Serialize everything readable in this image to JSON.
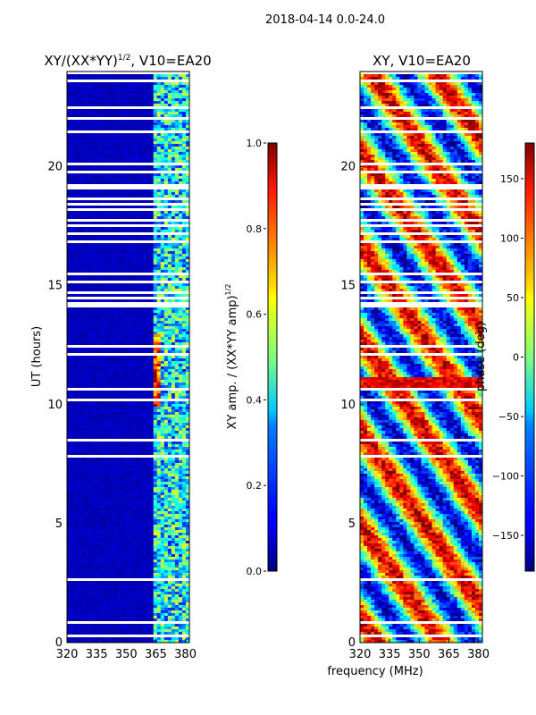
{
  "figure": {
    "suptitle": "2018-04-14 0.0-24.0",
    "xlabel": "frequency (MHz)"
  },
  "chart_data": [
    {
      "type": "heatmap",
      "title_base": "XY/(XX*YY)",
      "title_exponent": "1/2",
      "title_suffix": ", V10=EA20",
      "xlabel": "frequency (MHz)",
      "ylabel": "UT (hours)",
      "xlim": [
        320,
        382
      ],
      "ylim": [
        0,
        24
      ],
      "x_ticks": [
        "320",
        "335",
        "350",
        "365",
        "380"
      ],
      "x_tick_values": [
        320,
        335,
        350,
        365,
        380
      ],
      "y_ticks": [
        "0",
        "5",
        "10",
        "15",
        "20"
      ],
      "y_tick_values": [
        0,
        5,
        10,
        15,
        20
      ],
      "colorbar": {
        "label_base": "XY amp. / (XX*YY amp)",
        "label_exponent": "1/2",
        "range": [
          0.0,
          1.0
        ],
        "ticks": [
          "0.0",
          "0.2",
          "0.4",
          "0.6",
          "0.8",
          "1.0"
        ],
        "tick_values": [
          0.0,
          0.2,
          0.4,
          0.6,
          0.8,
          1.0
        ],
        "colormap": "jet"
      }
    },
    {
      "type": "heatmap",
      "title": "XY, V10=EA20",
      "xlabel": "frequency (MHz)",
      "ylabel": "",
      "xlim": [
        320,
        382
      ],
      "ylim": [
        0,
        24
      ],
      "x_ticks": [
        "320",
        "335",
        "350",
        "365",
        "380"
      ],
      "x_tick_values": [
        320,
        335,
        350,
        365,
        380
      ],
      "y_ticks": [
        "0",
        "5",
        "10",
        "15",
        "20"
      ],
      "y_tick_values": [
        0,
        5,
        10,
        15,
        20
      ],
      "colorbar": {
        "label": "phase (deg)",
        "range": [
          -180,
          180
        ],
        "ticks": [
          "−150",
          "−100",
          "−50",
          "0",
          "50",
          "100",
          "150"
        ],
        "tick_values": [
          -150,
          -100,
          -50,
          0,
          50,
          100,
          150
        ],
        "colormap": "jet"
      }
    }
  ]
}
